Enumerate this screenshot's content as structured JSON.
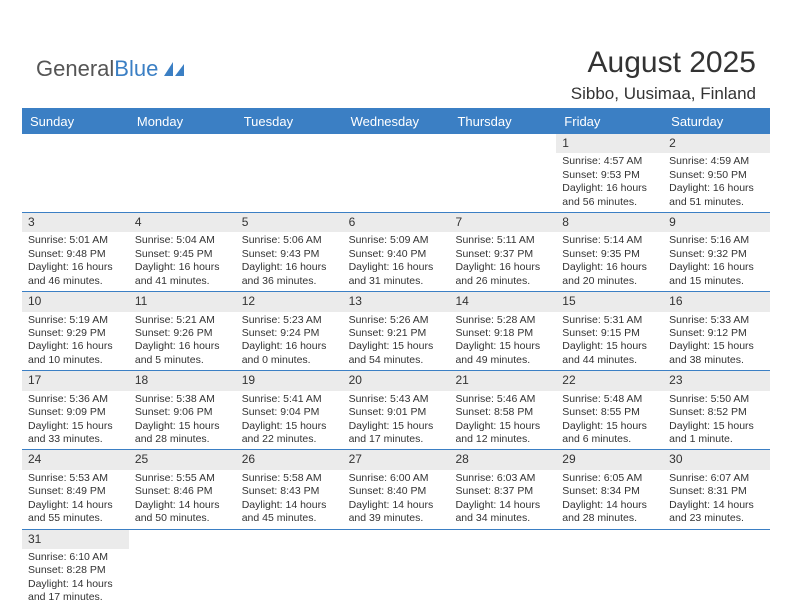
{
  "brand": {
    "part1": "General",
    "part2": "Blue"
  },
  "header": {
    "month_year": "August 2025",
    "location": "Sibbo, Uusimaa, Finland"
  },
  "style": {
    "accent_color": "#3b7fc4",
    "daynum_bg": "#ebebeb",
    "background": "#ffffff",
    "text_color": "#333333",
    "header_fontsize_pt": 30,
    "location_fontsize_pt": 17,
    "dayhead_fontsize_pt": 13,
    "cell_fontsize_pt": 10.5
  },
  "day_names": [
    "Sunday",
    "Monday",
    "Tuesday",
    "Wednesday",
    "Thursday",
    "Friday",
    "Saturday"
  ],
  "weeks": [
    [
      {
        "n": "",
        "sr": "",
        "ss": "",
        "dl": ""
      },
      {
        "n": "",
        "sr": "",
        "ss": "",
        "dl": ""
      },
      {
        "n": "",
        "sr": "",
        "ss": "",
        "dl": ""
      },
      {
        "n": "",
        "sr": "",
        "ss": "",
        "dl": ""
      },
      {
        "n": "",
        "sr": "",
        "ss": "",
        "dl": ""
      },
      {
        "n": "1",
        "sr": "Sunrise: 4:57 AM",
        "ss": "Sunset: 9:53 PM",
        "dl": "Daylight: 16 hours and 56 minutes."
      },
      {
        "n": "2",
        "sr": "Sunrise: 4:59 AM",
        "ss": "Sunset: 9:50 PM",
        "dl": "Daylight: 16 hours and 51 minutes."
      }
    ],
    [
      {
        "n": "3",
        "sr": "Sunrise: 5:01 AM",
        "ss": "Sunset: 9:48 PM",
        "dl": "Daylight: 16 hours and 46 minutes."
      },
      {
        "n": "4",
        "sr": "Sunrise: 5:04 AM",
        "ss": "Sunset: 9:45 PM",
        "dl": "Daylight: 16 hours and 41 minutes."
      },
      {
        "n": "5",
        "sr": "Sunrise: 5:06 AM",
        "ss": "Sunset: 9:43 PM",
        "dl": "Daylight: 16 hours and 36 minutes."
      },
      {
        "n": "6",
        "sr": "Sunrise: 5:09 AM",
        "ss": "Sunset: 9:40 PM",
        "dl": "Daylight: 16 hours and 31 minutes."
      },
      {
        "n": "7",
        "sr": "Sunrise: 5:11 AM",
        "ss": "Sunset: 9:37 PM",
        "dl": "Daylight: 16 hours and 26 minutes."
      },
      {
        "n": "8",
        "sr": "Sunrise: 5:14 AM",
        "ss": "Sunset: 9:35 PM",
        "dl": "Daylight: 16 hours and 20 minutes."
      },
      {
        "n": "9",
        "sr": "Sunrise: 5:16 AM",
        "ss": "Sunset: 9:32 PM",
        "dl": "Daylight: 16 hours and 15 minutes."
      }
    ],
    [
      {
        "n": "10",
        "sr": "Sunrise: 5:19 AM",
        "ss": "Sunset: 9:29 PM",
        "dl": "Daylight: 16 hours and 10 minutes."
      },
      {
        "n": "11",
        "sr": "Sunrise: 5:21 AM",
        "ss": "Sunset: 9:26 PM",
        "dl": "Daylight: 16 hours and 5 minutes."
      },
      {
        "n": "12",
        "sr": "Sunrise: 5:23 AM",
        "ss": "Sunset: 9:24 PM",
        "dl": "Daylight: 16 hours and 0 minutes."
      },
      {
        "n": "13",
        "sr": "Sunrise: 5:26 AM",
        "ss": "Sunset: 9:21 PM",
        "dl": "Daylight: 15 hours and 54 minutes."
      },
      {
        "n": "14",
        "sr": "Sunrise: 5:28 AM",
        "ss": "Sunset: 9:18 PM",
        "dl": "Daylight: 15 hours and 49 minutes."
      },
      {
        "n": "15",
        "sr": "Sunrise: 5:31 AM",
        "ss": "Sunset: 9:15 PM",
        "dl": "Daylight: 15 hours and 44 minutes."
      },
      {
        "n": "16",
        "sr": "Sunrise: 5:33 AM",
        "ss": "Sunset: 9:12 PM",
        "dl": "Daylight: 15 hours and 38 minutes."
      }
    ],
    [
      {
        "n": "17",
        "sr": "Sunrise: 5:36 AM",
        "ss": "Sunset: 9:09 PM",
        "dl": "Daylight: 15 hours and 33 minutes."
      },
      {
        "n": "18",
        "sr": "Sunrise: 5:38 AM",
        "ss": "Sunset: 9:06 PM",
        "dl": "Daylight: 15 hours and 28 minutes."
      },
      {
        "n": "19",
        "sr": "Sunrise: 5:41 AM",
        "ss": "Sunset: 9:04 PM",
        "dl": "Daylight: 15 hours and 22 minutes."
      },
      {
        "n": "20",
        "sr": "Sunrise: 5:43 AM",
        "ss": "Sunset: 9:01 PM",
        "dl": "Daylight: 15 hours and 17 minutes."
      },
      {
        "n": "21",
        "sr": "Sunrise: 5:46 AM",
        "ss": "Sunset: 8:58 PM",
        "dl": "Daylight: 15 hours and 12 minutes."
      },
      {
        "n": "22",
        "sr": "Sunrise: 5:48 AM",
        "ss": "Sunset: 8:55 PM",
        "dl": "Daylight: 15 hours and 6 minutes."
      },
      {
        "n": "23",
        "sr": "Sunrise: 5:50 AM",
        "ss": "Sunset: 8:52 PM",
        "dl": "Daylight: 15 hours and 1 minute."
      }
    ],
    [
      {
        "n": "24",
        "sr": "Sunrise: 5:53 AM",
        "ss": "Sunset: 8:49 PM",
        "dl": "Daylight: 14 hours and 55 minutes."
      },
      {
        "n": "25",
        "sr": "Sunrise: 5:55 AM",
        "ss": "Sunset: 8:46 PM",
        "dl": "Daylight: 14 hours and 50 minutes."
      },
      {
        "n": "26",
        "sr": "Sunrise: 5:58 AM",
        "ss": "Sunset: 8:43 PM",
        "dl": "Daylight: 14 hours and 45 minutes."
      },
      {
        "n": "27",
        "sr": "Sunrise: 6:00 AM",
        "ss": "Sunset: 8:40 PM",
        "dl": "Daylight: 14 hours and 39 minutes."
      },
      {
        "n": "28",
        "sr": "Sunrise: 6:03 AM",
        "ss": "Sunset: 8:37 PM",
        "dl": "Daylight: 14 hours and 34 minutes."
      },
      {
        "n": "29",
        "sr": "Sunrise: 6:05 AM",
        "ss": "Sunset: 8:34 PM",
        "dl": "Daylight: 14 hours and 28 minutes."
      },
      {
        "n": "30",
        "sr": "Sunrise: 6:07 AM",
        "ss": "Sunset: 8:31 PM",
        "dl": "Daylight: 14 hours and 23 minutes."
      }
    ],
    [
      {
        "n": "31",
        "sr": "Sunrise: 6:10 AM",
        "ss": "Sunset: 8:28 PM",
        "dl": "Daylight: 14 hours and 17 minutes."
      },
      {
        "n": "",
        "sr": "",
        "ss": "",
        "dl": ""
      },
      {
        "n": "",
        "sr": "",
        "ss": "",
        "dl": ""
      },
      {
        "n": "",
        "sr": "",
        "ss": "",
        "dl": ""
      },
      {
        "n": "",
        "sr": "",
        "ss": "",
        "dl": ""
      },
      {
        "n": "",
        "sr": "",
        "ss": "",
        "dl": ""
      },
      {
        "n": "",
        "sr": "",
        "ss": "",
        "dl": ""
      }
    ]
  ]
}
